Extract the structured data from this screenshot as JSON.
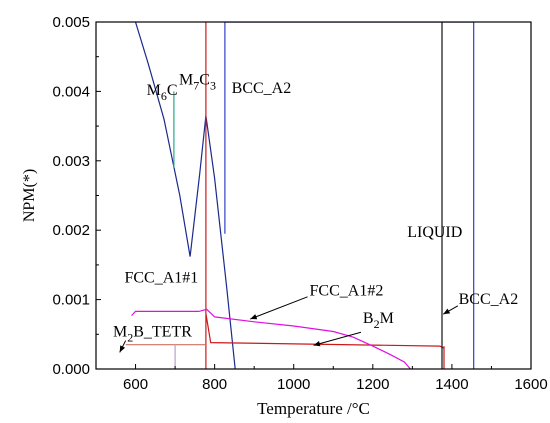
{
  "chart_data": {
    "type": "line",
    "title": "",
    "xlabel": "Temperature /°C",
    "ylabel": "NPM(*)",
    "xlim": [
      500,
      1600
    ],
    "ylim": [
      0,
      0.005
    ],
    "x_ticks": [
      600,
      800,
      1000,
      1200,
      1400,
      1600
    ],
    "x_tick_labels": [
      "600",
      "800",
      "1000",
      "1200",
      "1400",
      "1600"
    ],
    "y_ticks": [
      0,
      0.001,
      0.002,
      0.003,
      0.004,
      0.005
    ],
    "y_tick_labels": [
      "0.000",
      "0.001",
      "0.002",
      "0.003",
      "0.004",
      "0.005"
    ],
    "grid": false,
    "legend": "none",
    "series": [
      {
        "name": "M6C",
        "color": "#1a2a8c",
        "x": [
          600,
          632,
          672,
          712,
          738,
          762,
          778,
          800,
          830,
          852
        ],
        "y": [
          0.005,
          0.0044,
          0.0036,
          0.0025,
          0.00162,
          0.0028,
          0.00365,
          0.00275,
          0.0012,
          0
        ]
      },
      {
        "name": "M7C3",
        "color": "#2aa888",
        "x": [
          697,
          697
        ],
        "y": [
          0.0029,
          0.004
        ]
      },
      {
        "name": "BCC_A2",
        "color": "#3040c8",
        "x": [
          826,
          826,
          826,
          1455,
          1455
        ],
        "y": [
          0.005,
          0.00195,
          0.005,
          0.005,
          0
        ]
      },
      {
        "name": "FCC_A1#1",
        "color": "#cc1818",
        "x": [
          778,
          778,
          778,
          790,
          1370,
          1380,
          1380,
          1380
        ],
        "y": [
          0.005,
          0,
          0.0008,
          0.00038,
          0.00033,
          0.0003,
          0,
          0.00033
        ]
      },
      {
        "name": "FCC_A1#2",
        "color": "#e010e0",
        "x": [
          590,
          600,
          700,
          760,
          780,
          800,
          900,
          1000,
          1100,
          1150,
          1200,
          1240,
          1280,
          1295
        ],
        "y": [
          0.00077,
          0.00083,
          0.00083,
          0.00083,
          0.00086,
          0.00075,
          0.00068,
          0.00062,
          0.00054,
          0.00046,
          0.00033,
          0.00022,
          0.0001,
          0
        ]
      },
      {
        "name": "LIQUID",
        "color": "#111111",
        "x": [
          1375,
          1375
        ],
        "y": [
          0,
          0.005
        ]
      },
      {
        "name": "M2B_TETR",
        "color": "#d07060",
        "x": [
          575,
          700,
          778
        ],
        "y": [
          0.00035,
          0.00035,
          0.00035
        ]
      },
      {
        "name": "B2M",
        "color": "#bba0c8",
        "x": [
          700,
          700
        ],
        "y": [
          0,
          0.00035
        ]
      }
    ],
    "annotations": [
      {
        "text_main": "M",
        "text_sub": "6",
        "text_tail": "C",
        "x": 628,
        "y": 0.00395
      },
      {
        "text_main": "M",
        "text_sub": "7",
        "text_tail": "C",
        "text_sub2": "3",
        "x": 710,
        "y": 0.0041
      },
      {
        "text": "BCC_A2",
        "x": 843,
        "y": 0.00398
      },
      {
        "text": "LIQUID",
        "x": 1287,
        "y": 0.0019
      },
      {
        "text": "FCC_A1#1",
        "x": 572,
        "y": 0.00125
      },
      {
        "text": "FCC_A1#2",
        "x": 1040,
        "y": 0.00106
      },
      {
        "text": "BCC_A2",
        "x": 1417,
        "y": 0.00094
      },
      {
        "text_main": "B",
        "text_sub": "2",
        "text_tail": "M",
        "x": 1175,
        "y": 0.00066
      },
      {
        "text_main": "M",
        "text_sub": "2",
        "text_tail": "B_TETR",
        "x": 543,
        "y": 0.00047
      }
    ]
  }
}
